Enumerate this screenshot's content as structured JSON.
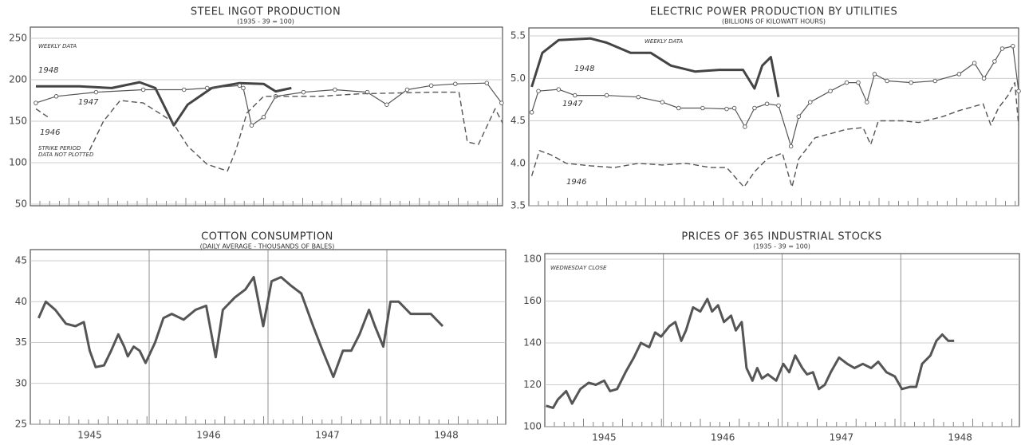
{
  "chart_data": [
    {
      "type": "line",
      "title": "STEEL INGOT PRODUCTION",
      "subtitle": "(1935 - 39 = 100)",
      "annotations": [
        "WEEKLY DATA",
        "STRIKE PERIOD",
        "DATA NOT PLOTTED"
      ],
      "xlim": [
        1,
        52
      ],
      "ylim": [
        50,
        250
      ],
      "yticks": [
        50,
        100,
        150,
        200,
        250
      ],
      "grid": true,
      "series": [
        {
          "name": "1948",
          "color": "#444",
          "style": "thick",
          "x": [
            1.6,
            6.3,
            9.8,
            12.8,
            14.5,
            16.5,
            18.0,
            20.6,
            23.6,
            26.2,
            27.5,
            29.2
          ],
          "values": [
            192,
            192,
            190,
            197,
            190,
            145,
            170,
            190,
            196,
            195,
            186,
            190
          ]
        },
        {
          "name": "1947",
          "color": "#555",
          "style": "circles",
          "x": [
            1.6,
            3.8,
            8.1,
            13.2,
            17.6,
            20.1,
            23.6,
            24.0,
            24.9,
            26.2,
            27.5,
            30.5,
            33.9,
            37.4,
            39.5,
            41.7,
            44.3,
            46.9,
            50.3,
            51.9
          ],
          "values": [
            172,
            180,
            185,
            188,
            188,
            190,
            193,
            190,
            145,
            155,
            180,
            185,
            188,
            185,
            170,
            188,
            193,
            195,
            196,
            172
          ]
        },
        {
          "name": "1946",
          "color": "#555",
          "style": "dashed",
          "x": [
            1.6,
            2.9,
            null,
            7.4,
            8.9,
            10.7,
            13.2,
            16.3,
            18.0,
            20.1,
            22.3,
            23.2,
            24.4,
            26.2,
            32.2,
            36.5,
            44.3,
            47.3,
            48.2,
            49.4,
            51.2,
            52
          ],
          "values": [
            165,
            155,
            null,
            115,
            150,
            175,
            172,
            150,
            120,
            98,
            90,
            115,
            160,
            180,
            180,
            183,
            185,
            185,
            125,
            122,
            165,
            148
          ]
        }
      ]
    },
    {
      "type": "line",
      "title": "ELECTRIC POWER PRODUCTION BY UTILITIES",
      "subtitle": "(BILLIONS OF KILOWATT HOURS)",
      "annotations": [
        "WEEKLY DATA"
      ],
      "xlim": [
        1,
        52
      ],
      "ylim": [
        3.5,
        5.5
      ],
      "yticks": [
        3.5,
        {
          "value": 4,
          "label": "4.0"
        },
        4.5,
        {
          "value": 5,
          "label": "5.0"
        },
        5.5
      ],
      "grid": true,
      "series": [
        {
          "name": "1948",
          "color": "#444",
          "style": "thick",
          "x": [
            1.3,
            2.4,
            4.1,
            7.4,
            9.1,
            11.6,
            13.7,
            15.8,
            18.3,
            20.8,
            23.3,
            24.5,
            25.3,
            26.2,
            27
          ],
          "values": [
            4.9,
            5.3,
            5.45,
            5.47,
            5.42,
            5.3,
            5.3,
            5.15,
            5.08,
            5.1,
            5.1,
            4.88,
            5.15,
            5.25,
            4.78
          ]
        },
        {
          "name": "1947",
          "color": "#555",
          "style": "circles",
          "x": [
            1.3,
            2,
            4.1,
            5.8,
            9.1,
            12.4,
            14.9,
            16.6,
            19.1,
            21.6,
            22.4,
            23.5,
            24.5,
            25.8,
            27,
            28.3,
            29.1,
            30.3,
            32.4,
            34.1,
            35.3,
            36.2,
            37,
            38.3,
            40.8,
            43.3,
            45.8,
            47.4,
            48.4,
            49.5,
            50.3,
            51.4,
            52
          ],
          "values": [
            4.6,
            4.85,
            4.87,
            4.8,
            4.8,
            4.78,
            4.72,
            4.65,
            4.65,
            4.64,
            4.65,
            4.43,
            4.65,
            4.7,
            4.68,
            4.2,
            4.55,
            4.72,
            4.85,
            4.95,
            4.95,
            4.72,
            5.05,
            4.97,
            4.95,
            4.97,
            5.05,
            5.18,
            5.0,
            5.2,
            5.35,
            5.38,
            4.85
          ]
        },
        {
          "name": "1946",
          "color": "#555",
          "style": "dashed",
          "x": [
            1.3,
            2.1,
            3.3,
            4.9,
            7.4,
            9.9,
            12.4,
            14.9,
            17.4,
            19.9,
            21.6,
            23.4,
            24.5,
            25.8,
            27.4,
            28.4,
            29.1,
            30.8,
            34.1,
            35.8,
            36.6,
            37.4,
            39.9,
            41.6,
            44.1,
            45.8,
            48.3,
            49.1,
            49.9,
            50.9,
            51.6,
            52
          ],
          "values": [
            3.85,
            4.15,
            4.1,
            4.0,
            3.97,
            3.95,
            4.0,
            3.98,
            4.0,
            3.95,
            3.95,
            3.72,
            3.9,
            4.05,
            4.12,
            3.72,
            4.05,
            4.3,
            4.4,
            4.42,
            4.22,
            4.5,
            4.5,
            4.48,
            4.55,
            4.62,
            4.7,
            4.45,
            4.65,
            4.8,
            4.95,
            4.45
          ]
        }
      ]
    },
    {
      "type": "line",
      "title": "COTTON CONSUMPTION",
      "subtitle": "(DAILY AVERAGE - THOUSANDS OF BALES)",
      "xlim": [
        1945,
        1949
      ],
      "xticks": [
        {
          "value": 1945.5,
          "label": "1945"
        },
        {
          "value": 1946.5,
          "label": "1946"
        },
        {
          "value": 1947.5,
          "label": "1947"
        },
        {
          "value": 1948.5,
          "label": "1948"
        }
      ],
      "xgrid": [
        1946,
        1947,
        1948
      ],
      "ylim": [
        25,
        45
      ],
      "yticks": [
        25,
        30,
        35,
        40,
        45
      ],
      "grid": true,
      "series": [
        {
          "color": "#555",
          "style": "thick",
          "x": [
            1945.07,
            1945.13,
            1945.21,
            1945.3,
            1945.38,
            1945.45,
            1945.5,
            1945.55,
            1945.62,
            1945.68,
            1945.74,
            1945.79,
            1945.82,
            1945.87,
            1945.92,
            1945.97,
            1946.05,
            1946.12,
            1946.19,
            1946.29,
            1946.39,
            1946.48,
            1946.56,
            1946.62,
            1946.72,
            1946.81,
            1946.88,
            1946.96,
            1947.03,
            1947.11,
            1947.19,
            1947.28,
            1947.38,
            1947.46,
            1947.55,
            1947.63,
            1947.7,
            1947.77,
            1947.85,
            1947.9,
            1947.97,
            1948.03,
            1948.1,
            1948.2,
            1948.3,
            1948.37,
            1948.47
          ],
          "values": [
            38,
            40,
            39,
            37.3,
            37,
            37.5,
            34,
            32,
            32.2,
            34,
            36,
            34.5,
            33.3,
            34.5,
            34,
            32.5,
            35,
            38,
            38.5,
            37.8,
            39,
            39.5,
            33.2,
            39,
            40.5,
            41.5,
            43,
            37,
            42.5,
            43,
            42,
            41,
            37,
            34,
            30.8,
            34,
            34,
            36,
            39,
            37,
            34.5,
            40,
            40,
            38.5,
            38.5,
            38.5,
            37
          ]
        }
      ]
    },
    {
      "type": "line",
      "title": "PRICES OF 365 INDUSTRIAL STOCKS",
      "subtitle": "(1935 - 39 = 100)",
      "annotations": [
        "WEDNESDAY CLOSE"
      ],
      "xlim": [
        1945,
        1949
      ],
      "xticks": [
        {
          "value": 1945.5,
          "label": "1945"
        },
        {
          "value": 1946.5,
          "label": "1946"
        },
        {
          "value": 1947.5,
          "label": "1947"
        },
        {
          "value": 1948.5,
          "label": "1948"
        }
      ],
      "xgrid": [
        1946,
        1947,
        1948
      ],
      "ylim": [
        100,
        180
      ],
      "yticks": [
        100,
        120,
        140,
        160,
        180
      ],
      "grid": true,
      "series": [
        {
          "color": "#555",
          "style": "thick",
          "x": [
            1945.01,
            1945.07,
            1945.11,
            1945.18,
            1945.23,
            1945.3,
            1945.37,
            1945.43,
            1945.5,
            1945.55,
            1945.61,
            1945.68,
            1945.75,
            1945.81,
            1945.88,
            1945.93,
            1945.98,
            1946.05,
            1946.1,
            1946.15,
            1946.19,
            1946.25,
            1946.31,
            1946.37,
            1946.41,
            1946.46,
            1946.51,
            1946.57,
            1946.61,
            1946.66,
            1946.7,
            1946.75,
            1946.79,
            1946.83,
            1946.88,
            1946.95,
            1947.01,
            1947.06,
            1947.11,
            1947.17,
            1947.21,
            1947.26,
            1947.31,
            1947.36,
            1947.41,
            1947.48,
            1947.55,
            1947.61,
            1947.68,
            1947.75,
            1947.81,
            1947.88,
            1947.95,
            1948.01,
            1948.08,
            1948.13,
            1948.18,
            1948.25,
            1948.3,
            1948.35,
            1948.4,
            1948.45
          ],
          "values": [
            110,
            109,
            113,
            117,
            111,
            118,
            121,
            120,
            122,
            117,
            118,
            126,
            133,
            140,
            138,
            145,
            143,
            148,
            150,
            141,
            146,
            157,
            155,
            161,
            155,
            158,
            150,
            153,
            146,
            150,
            128,
            122,
            128,
            123,
            125,
            122,
            130,
            126,
            134,
            128,
            125,
            126,
            118,
            120,
            126,
            133,
            130,
            128,
            130,
            128,
            131,
            126,
            124,
            118,
            119,
            119,
            130,
            134,
            141,
            144,
            141,
            141
          ]
        }
      ]
    }
  ]
}
